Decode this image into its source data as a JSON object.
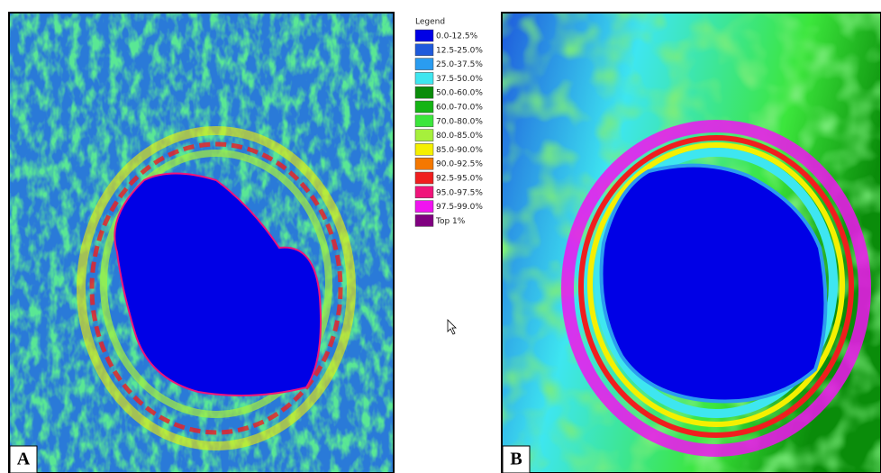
{
  "legend": {
    "title": "Legend",
    "items": [
      {
        "label": "0.0-12.5%",
        "color": "#0000e6"
      },
      {
        "label": "12.5-25.0%",
        "color": "#1e5adc"
      },
      {
        "label": "25.0-37.5%",
        "color": "#2a9cf0"
      },
      {
        "label": "37.5-50.0%",
        "color": "#3ee6f0"
      },
      {
        "label": "50.0-60.0%",
        "color": "#0a8c0a"
      },
      {
        "label": "60.0-70.0%",
        "color": "#14b414"
      },
      {
        "label": "70.0-80.0%",
        "color": "#3ce63c"
      },
      {
        "label": "80.0-85.0%",
        "color": "#a6f03c"
      },
      {
        "label": "85.0-90.0%",
        "color": "#f5f000"
      },
      {
        "label": "90.0-92.5%",
        "color": "#f57800"
      },
      {
        "label": "92.5-95.0%",
        "color": "#f01e1e"
      },
      {
        "label": "95.0-97.5%",
        "color": "#f0147a"
      },
      {
        "label": "97.5-99.0%",
        "color": "#f014f0"
      },
      {
        "label": "Top 1%",
        "color": "#800080"
      }
    ]
  },
  "panels": [
    {
      "label": "A"
    },
    {
      "label": "B"
    }
  ]
}
